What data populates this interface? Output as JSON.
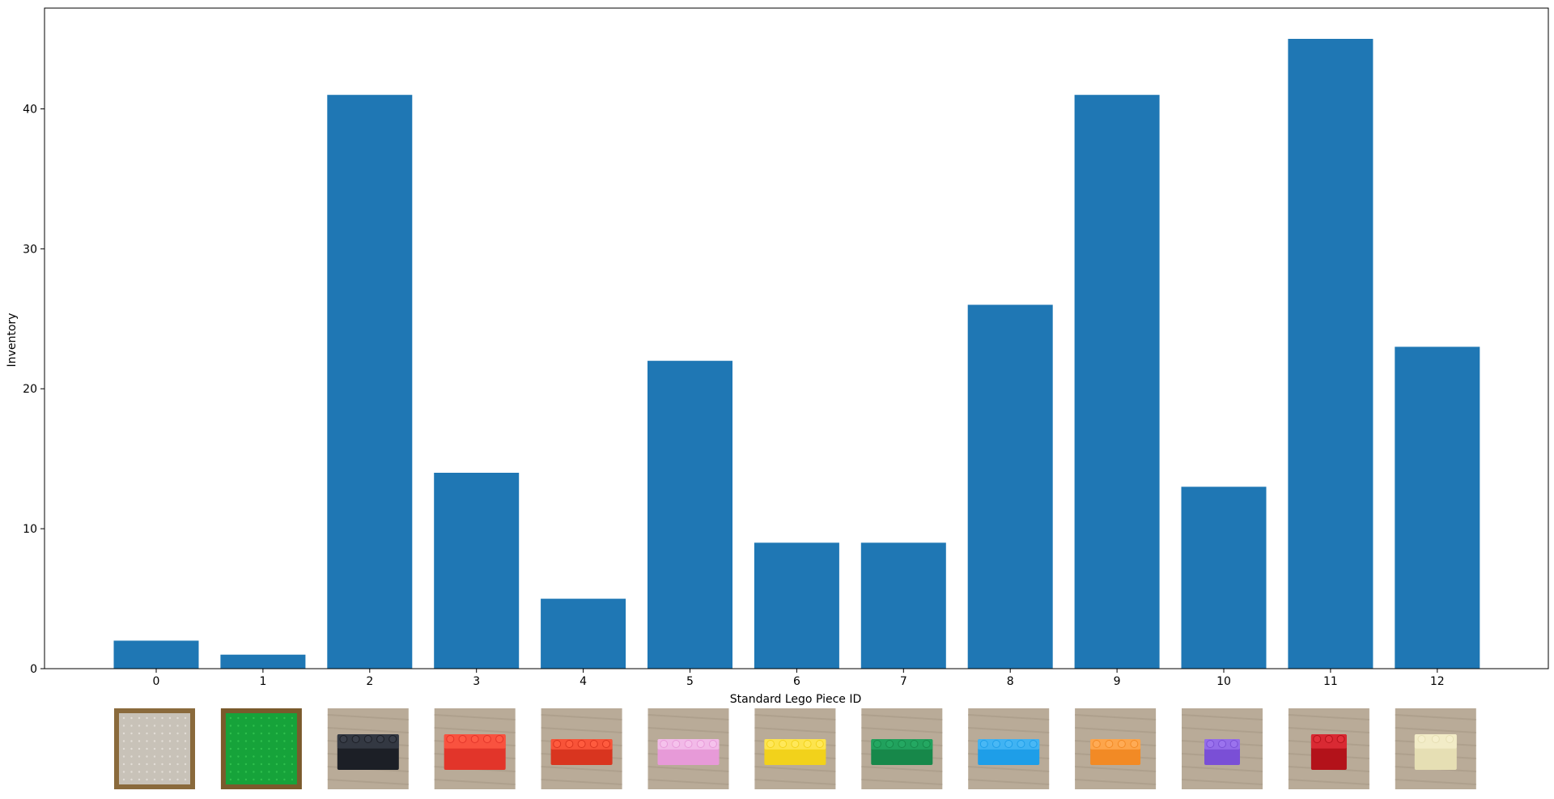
{
  "chart_data": {
    "type": "bar",
    "title": "",
    "xlabel": "Standard Lego Piece ID",
    "ylabel": "Inventory",
    "categories": [
      "0",
      "1",
      "2",
      "3",
      "4",
      "5",
      "6",
      "7",
      "8",
      "9",
      "10",
      "11",
      "12"
    ],
    "values": [
      2,
      1,
      41,
      14,
      5,
      22,
      9,
      9,
      26,
      41,
      13,
      45,
      23
    ],
    "ylim": [
      0,
      47.2
    ],
    "yticks": [
      0,
      10,
      20,
      30,
      40
    ],
    "grid": false,
    "bar_color": "#1f77b4",
    "piece_thumbnails": [
      {
        "id": "0",
        "colors": [
          "#c8c2b8",
          "#e2ddd6",
          "#8a6a3c"
        ],
        "icon": "lego-baseplate-white-icon"
      },
      {
        "id": "1",
        "colors": [
          "#16a33a",
          "#2fbf4e",
          "#7a5a2c"
        ],
        "icon": "lego-baseplate-green-icon"
      },
      {
        "id": "2",
        "colors": [
          "#1c1f26",
          "#3a3f4a",
          "#b9ab98"
        ],
        "icon": "lego-brick-black-icon"
      },
      {
        "id": "3",
        "colors": [
          "#e2352a",
          "#ff5a45",
          "#b9ab98"
        ],
        "icon": "lego-brick-red-icon"
      },
      {
        "id": "4",
        "colors": [
          "#d9351f",
          "#ff5b3e",
          "#b9ab98"
        ],
        "icon": "lego-brick-long-red-icon"
      },
      {
        "id": "5",
        "colors": [
          "#e79ad8",
          "#f5c2ec",
          "#b9ab98"
        ],
        "icon": "lego-brick-pink-icon"
      },
      {
        "id": "6",
        "colors": [
          "#f2d21b",
          "#ffe85a",
          "#b9ab98"
        ],
        "icon": "lego-brick-yellow-icon"
      },
      {
        "id": "7",
        "colors": [
          "#17884a",
          "#24a862",
          "#b9ab98"
        ],
        "icon": "lego-brick-green-icon"
      },
      {
        "id": "8",
        "colors": [
          "#1e9ee8",
          "#49b8f5",
          "#b9ab98"
        ],
        "icon": "lego-brick-blue-icon"
      },
      {
        "id": "9",
        "colors": [
          "#f28a25",
          "#ffab55",
          "#b9ab98"
        ],
        "icon": "lego-brick-orange-icon"
      },
      {
        "id": "10",
        "colors": [
          "#7a4fd6",
          "#9b73ee",
          "#b9ab98"
        ],
        "icon": "lego-brick-purple-icon"
      },
      {
        "id": "11",
        "colors": [
          "#b3121a",
          "#e2303a",
          "#b9ab98"
        ],
        "icon": "lego-brick-transparent-red-icon"
      },
      {
        "id": "12",
        "colors": [
          "#e6dfb4",
          "#f5efcc",
          "#b9ab98"
        ],
        "icon": "lego-brick-tan-icon"
      }
    ]
  }
}
